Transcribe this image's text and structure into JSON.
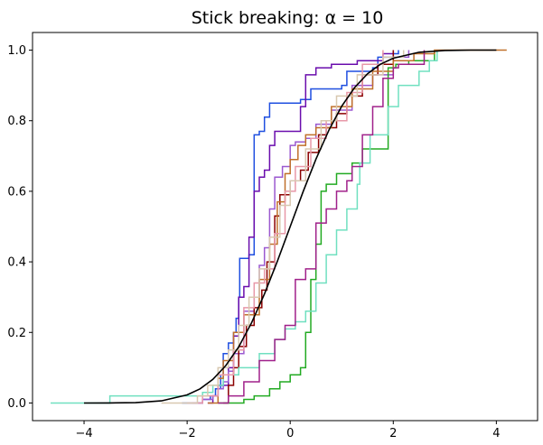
{
  "chart_data": {
    "type": "line",
    "title": "Stick breaking: α = 10",
    "xlabel": "",
    "ylabel": "",
    "xlim": [
      -5.0,
      4.8
    ],
    "ylim": [
      -0.05,
      1.05
    ],
    "x_ticks": [
      -4,
      -2,
      0,
      2,
      4
    ],
    "x_tick_labels": [
      "−4",
      "−2",
      "0",
      "2",
      "4"
    ],
    "y_ticks": [
      0.0,
      0.2,
      0.4,
      0.6,
      0.8,
      1.0
    ],
    "y_tick_labels": [
      "0.0",
      "0.2",
      "0.4",
      "0.6",
      "0.8",
      "1.0"
    ],
    "grid": false,
    "legend": "none",
    "reference_curve": {
      "color": "#000000",
      "x": [
        -4.0,
        -3.5,
        -3.0,
        -2.5,
        -2.0,
        -1.75,
        -1.5,
        -1.25,
        -1.0,
        -0.75,
        -0.5,
        -0.25,
        0.0,
        0.25,
        0.5,
        0.75,
        1.0,
        1.25,
        1.5,
        1.75,
        2.0,
        2.5,
        3.0,
        3.5,
        4.0
      ],
      "y": [
        0.0,
        0.0002,
        0.001,
        0.006,
        0.023,
        0.04,
        0.067,
        0.106,
        0.159,
        0.227,
        0.309,
        0.401,
        0.5,
        0.599,
        0.691,
        0.773,
        0.841,
        0.894,
        0.933,
        0.96,
        0.977,
        0.994,
        0.999,
        1.0,
        1.0
      ]
    },
    "series": [
      {
        "color": "#1f4fe0",
        "x": [
          -2.1,
          -1.7,
          -1.55,
          -1.45,
          -1.35,
          -1.3,
          -1.2,
          -1.1,
          -1.05,
          -1.0,
          -0.98,
          -0.8,
          -0.7,
          -0.6,
          -0.5,
          -0.4,
          0.2,
          0.4,
          1.0,
          1.1,
          1.6,
          1.7,
          2.0,
          2.1
        ],
        "y": [
          0.0,
          0.01,
          0.02,
          0.04,
          0.08,
          0.14,
          0.17,
          0.2,
          0.24,
          0.3,
          0.41,
          0.42,
          0.76,
          0.77,
          0.81,
          0.85,
          0.86,
          0.89,
          0.9,
          0.94,
          0.95,
          0.98,
          0.99,
          1.0
        ]
      },
      {
        "color": "#6a0dad",
        "x": [
          -1.6,
          -1.5,
          -1.4,
          -1.2,
          -1.1,
          -1.0,
          -0.9,
          -0.8,
          -0.7,
          -0.6,
          -0.5,
          -0.4,
          -0.3,
          0.2,
          0.3,
          0.5,
          0.8,
          1.3,
          1.8,
          2.0
        ],
        "y": [
          0.0,
          0.02,
          0.05,
          0.1,
          0.19,
          0.3,
          0.33,
          0.47,
          0.6,
          0.64,
          0.66,
          0.73,
          0.77,
          0.84,
          0.93,
          0.95,
          0.96,
          0.97,
          0.99,
          1.0
        ]
      },
      {
        "color": "#9b59d0",
        "x": [
          -1.9,
          -1.7,
          -1.5,
          -1.4,
          -1.3,
          -1.2,
          -1.1,
          -0.9,
          -0.7,
          -0.6,
          -0.5,
          -0.4,
          -0.3,
          -0.15,
          0.0,
          0.1,
          0.3,
          0.5,
          0.8,
          1.2,
          1.6,
          2.0,
          2.3
        ],
        "y": [
          0.0,
          0.01,
          0.02,
          0.04,
          0.06,
          0.09,
          0.14,
          0.26,
          0.3,
          0.39,
          0.44,
          0.55,
          0.64,
          0.67,
          0.73,
          0.74,
          0.75,
          0.79,
          0.83,
          0.9,
          0.93,
          0.98,
          1.0
        ]
      },
      {
        "color": "#8b0000",
        "x": [
          -1.3,
          -1.2,
          -1.1,
          -1.0,
          -0.85,
          -0.7,
          -0.55,
          -0.45,
          -0.3,
          -0.2,
          0.0,
          0.2,
          0.35,
          0.55,
          0.7,
          0.9,
          1.1,
          1.4,
          1.7,
          2.0
        ],
        "y": [
          0.0,
          0.05,
          0.1,
          0.16,
          0.22,
          0.27,
          0.32,
          0.4,
          0.53,
          0.59,
          0.63,
          0.66,
          0.71,
          0.76,
          0.78,
          0.82,
          0.87,
          0.93,
          0.96,
          1.0
        ]
      },
      {
        "color": "#22aa22",
        "x": [
          -1.4,
          -0.9,
          -0.7,
          -0.4,
          -0.2,
          0.0,
          0.2,
          0.3,
          0.4,
          0.5,
          0.6,
          0.7,
          0.9,
          1.2,
          1.4,
          1.9,
          2.05,
          2.3,
          2.8
        ],
        "y": [
          0.0,
          0.01,
          0.02,
          0.04,
          0.06,
          0.08,
          0.1,
          0.2,
          0.35,
          0.45,
          0.6,
          0.62,
          0.65,
          0.68,
          0.72,
          0.95,
          0.96,
          0.97,
          1.0
        ]
      },
      {
        "color": "#70e0c0",
        "x": [
          -4.65,
          -3.5,
          -1.7,
          -1.5,
          -1.3,
          -1.0,
          -0.6,
          -0.3,
          -0.1,
          0.1,
          0.3,
          0.5,
          0.7,
          0.9,
          1.1,
          1.3,
          1.35,
          1.55,
          1.9,
          2.1,
          2.5,
          2.7,
          2.85
        ],
        "y": [
          0.0,
          0.02,
          0.03,
          0.05,
          0.08,
          0.1,
          0.14,
          0.18,
          0.21,
          0.23,
          0.26,
          0.34,
          0.42,
          0.49,
          0.55,
          0.62,
          0.68,
          0.76,
          0.84,
          0.9,
          0.94,
          0.97,
          1.0
        ]
      },
      {
        "color": "#c0702a",
        "x": [
          -1.6,
          -1.4,
          -1.3,
          -1.1,
          -0.9,
          -0.6,
          -0.4,
          -0.25,
          -0.1,
          0.0,
          0.15,
          0.3,
          0.5,
          0.8,
          1.2,
          1.6,
          2.0,
          2.4,
          2.8,
          4.2
        ],
        "y": [
          0.0,
          0.07,
          0.12,
          0.2,
          0.25,
          0.35,
          0.45,
          0.57,
          0.65,
          0.69,
          0.73,
          0.76,
          0.78,
          0.84,
          0.89,
          0.94,
          0.97,
          0.99,
          1.0,
          1.0
        ]
      },
      {
        "color": "#e898a8",
        "x": [
          -2.0,
          -1.7,
          -1.4,
          -1.1,
          -0.9,
          -0.7,
          -0.5,
          -0.3,
          -0.1,
          0.1,
          0.4,
          0.7,
          1.1,
          1.4,
          1.8
        ],
        "y": [
          0.0,
          0.02,
          0.08,
          0.15,
          0.27,
          0.34,
          0.38,
          0.48,
          0.6,
          0.67,
          0.75,
          0.8,
          0.88,
          0.96,
          1.0
        ]
      },
      {
        "color": "#a0208a",
        "x": [
          -1.4,
          -1.2,
          -0.9,
          -0.6,
          -0.3,
          -0.1,
          0.1,
          0.3,
          0.5,
          0.7,
          0.9,
          1.1,
          1.2,
          1.4,
          1.6,
          1.8,
          2.0,
          2.1,
          2.6
        ],
        "y": [
          0.0,
          0.02,
          0.06,
          0.12,
          0.18,
          0.22,
          0.35,
          0.38,
          0.51,
          0.55,
          0.6,
          0.63,
          0.67,
          0.76,
          0.84,
          0.92,
          0.95,
          0.96,
          1.0
        ]
      },
      {
        "color": "#d8c8b0",
        "x": [
          -2.5,
          -1.8,
          -1.6,
          -1.4,
          -1.2,
          -1.0,
          -0.8,
          -0.6,
          -0.4,
          -0.2,
          0.0,
          0.3,
          0.6,
          0.9,
          1.3,
          1.8,
          2.2
        ],
        "y": [
          0.0,
          0.02,
          0.05,
          0.1,
          0.15,
          0.22,
          0.3,
          0.38,
          0.47,
          0.56,
          0.63,
          0.72,
          0.8,
          0.87,
          0.93,
          0.98,
          1.0
        ]
      }
    ]
  }
}
